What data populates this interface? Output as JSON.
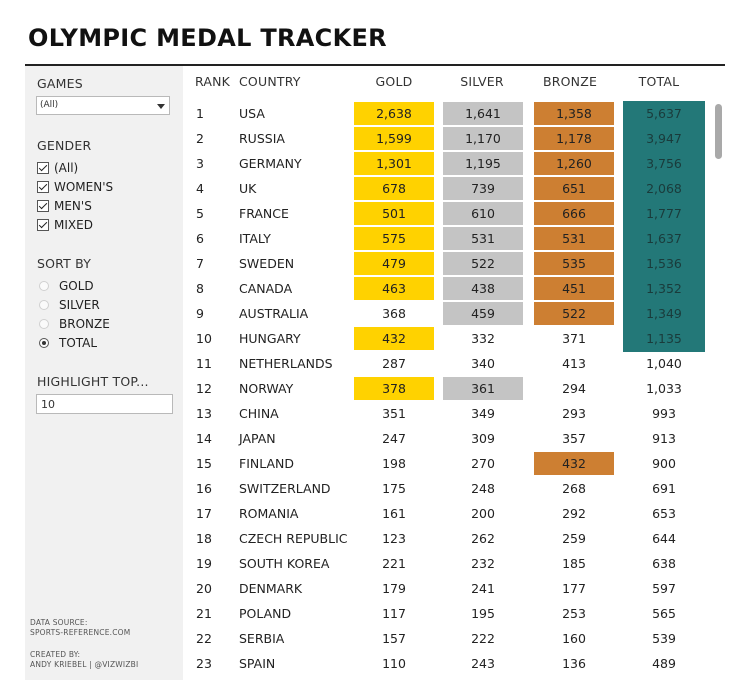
{
  "title": "OLYMPIC MEDAL TRACKER",
  "filters": {
    "games_label": "GAMES",
    "games_value": "(All)",
    "gender_label": "GENDER",
    "gender_options": [
      "(All)",
      "WOMEN'S",
      "MEN'S",
      "MIXED"
    ],
    "sort_label": "SORT BY",
    "sort_options": [
      "GOLD",
      "SILVER",
      "BRONZE",
      "TOTAL"
    ],
    "sort_selected": "TOTAL",
    "highlight_label": "HIGHLIGHT TOP...",
    "highlight_value": "10"
  },
  "credits": {
    "source_label": "DATA SOURCE:",
    "source_value": "SPORTS-REFERENCE.COM",
    "created_label": "CREATED BY:",
    "created_value": "ANDY KRIEBEL | @VIZWIZBI"
  },
  "colors": {
    "gold": "#ffd200",
    "silver": "#c4c4c4",
    "bronze": "#cd7f32",
    "total": "#237878"
  },
  "table": {
    "headers": {
      "rank": "RANK",
      "country": "COUNTRY",
      "gold": "GOLD",
      "silver": "SILVER",
      "bronze": "BRONZE",
      "total": "TOTAL"
    },
    "rows": [
      {
        "rank": "1",
        "country": "USA",
        "gold": "2,638",
        "silver": "1,641",
        "bronze": "1,358",
        "total": "5,637",
        "hl": [
          true,
          true,
          true,
          true
        ]
      },
      {
        "rank": "2",
        "country": "RUSSIA",
        "gold": "1,599",
        "silver": "1,170",
        "bronze": "1,178",
        "total": "3,947",
        "hl": [
          true,
          true,
          true,
          true
        ]
      },
      {
        "rank": "3",
        "country": "GERMANY",
        "gold": "1,301",
        "silver": "1,195",
        "bronze": "1,260",
        "total": "3,756",
        "hl": [
          true,
          true,
          true,
          true
        ]
      },
      {
        "rank": "4",
        "country": "UK",
        "gold": "678",
        "silver": "739",
        "bronze": "651",
        "total": "2,068",
        "hl": [
          true,
          true,
          true,
          true
        ]
      },
      {
        "rank": "5",
        "country": "FRANCE",
        "gold": "501",
        "silver": "610",
        "bronze": "666",
        "total": "1,777",
        "hl": [
          true,
          true,
          true,
          true
        ]
      },
      {
        "rank": "6",
        "country": "ITALY",
        "gold": "575",
        "silver": "531",
        "bronze": "531",
        "total": "1,637",
        "hl": [
          true,
          true,
          true,
          true
        ]
      },
      {
        "rank": "7",
        "country": "SWEDEN",
        "gold": "479",
        "silver": "522",
        "bronze": "535",
        "total": "1,536",
        "hl": [
          true,
          true,
          true,
          true
        ]
      },
      {
        "rank": "8",
        "country": "CANADA",
        "gold": "463",
        "silver": "438",
        "bronze": "451",
        "total": "1,352",
        "hl": [
          true,
          true,
          true,
          true
        ]
      },
      {
        "rank": "9",
        "country": "AUSTRALIA",
        "gold": "368",
        "silver": "459",
        "bronze": "522",
        "total": "1,349",
        "hl": [
          false,
          true,
          true,
          true
        ]
      },
      {
        "rank": "10",
        "country": "HUNGARY",
        "gold": "432",
        "silver": "332",
        "bronze": "371",
        "total": "1,135",
        "hl": [
          true,
          false,
          false,
          true
        ]
      },
      {
        "rank": "11",
        "country": "NETHERLANDS",
        "gold": "287",
        "silver": "340",
        "bronze": "413",
        "total": "1,040",
        "hl": [
          false,
          false,
          false,
          false
        ]
      },
      {
        "rank": "12",
        "country": "NORWAY",
        "gold": "378",
        "silver": "361",
        "bronze": "294",
        "total": "1,033",
        "hl": [
          true,
          true,
          false,
          false
        ]
      },
      {
        "rank": "13",
        "country": "CHINA",
        "gold": "351",
        "silver": "349",
        "bronze": "293",
        "total": "993",
        "hl": [
          false,
          false,
          false,
          false
        ]
      },
      {
        "rank": "14",
        "country": "JAPAN",
        "gold": "247",
        "silver": "309",
        "bronze": "357",
        "total": "913",
        "hl": [
          false,
          false,
          false,
          false
        ]
      },
      {
        "rank": "15",
        "country": "FINLAND",
        "gold": "198",
        "silver": "270",
        "bronze": "432",
        "total": "900",
        "hl": [
          false,
          false,
          true,
          false
        ]
      },
      {
        "rank": "16",
        "country": "SWITZERLAND",
        "gold": "175",
        "silver": "248",
        "bronze": "268",
        "total": "691",
        "hl": [
          false,
          false,
          false,
          false
        ]
      },
      {
        "rank": "17",
        "country": "ROMANIA",
        "gold": "161",
        "silver": "200",
        "bronze": "292",
        "total": "653",
        "hl": [
          false,
          false,
          false,
          false
        ]
      },
      {
        "rank": "18",
        "country": "CZECH REPUBLIC",
        "gold": "123",
        "silver": "262",
        "bronze": "259",
        "total": "644",
        "hl": [
          false,
          false,
          false,
          false
        ]
      },
      {
        "rank": "19",
        "country": "SOUTH KOREA",
        "gold": "221",
        "silver": "232",
        "bronze": "185",
        "total": "638",
        "hl": [
          false,
          false,
          false,
          false
        ]
      },
      {
        "rank": "20",
        "country": "DENMARK",
        "gold": "179",
        "silver": "241",
        "bronze": "177",
        "total": "597",
        "hl": [
          false,
          false,
          false,
          false
        ]
      },
      {
        "rank": "21",
        "country": "POLAND",
        "gold": "117",
        "silver": "195",
        "bronze": "253",
        "total": "565",
        "hl": [
          false,
          false,
          false,
          false
        ]
      },
      {
        "rank": "22",
        "country": "SERBIA",
        "gold": "157",
        "silver": "222",
        "bronze": "160",
        "total": "539",
        "hl": [
          false,
          false,
          false,
          false
        ]
      },
      {
        "rank": "23",
        "country": "SPAIN",
        "gold": "110",
        "silver": "243",
        "bronze": "136",
        "total": "489",
        "hl": [
          false,
          false,
          false,
          false
        ]
      }
    ]
  }
}
